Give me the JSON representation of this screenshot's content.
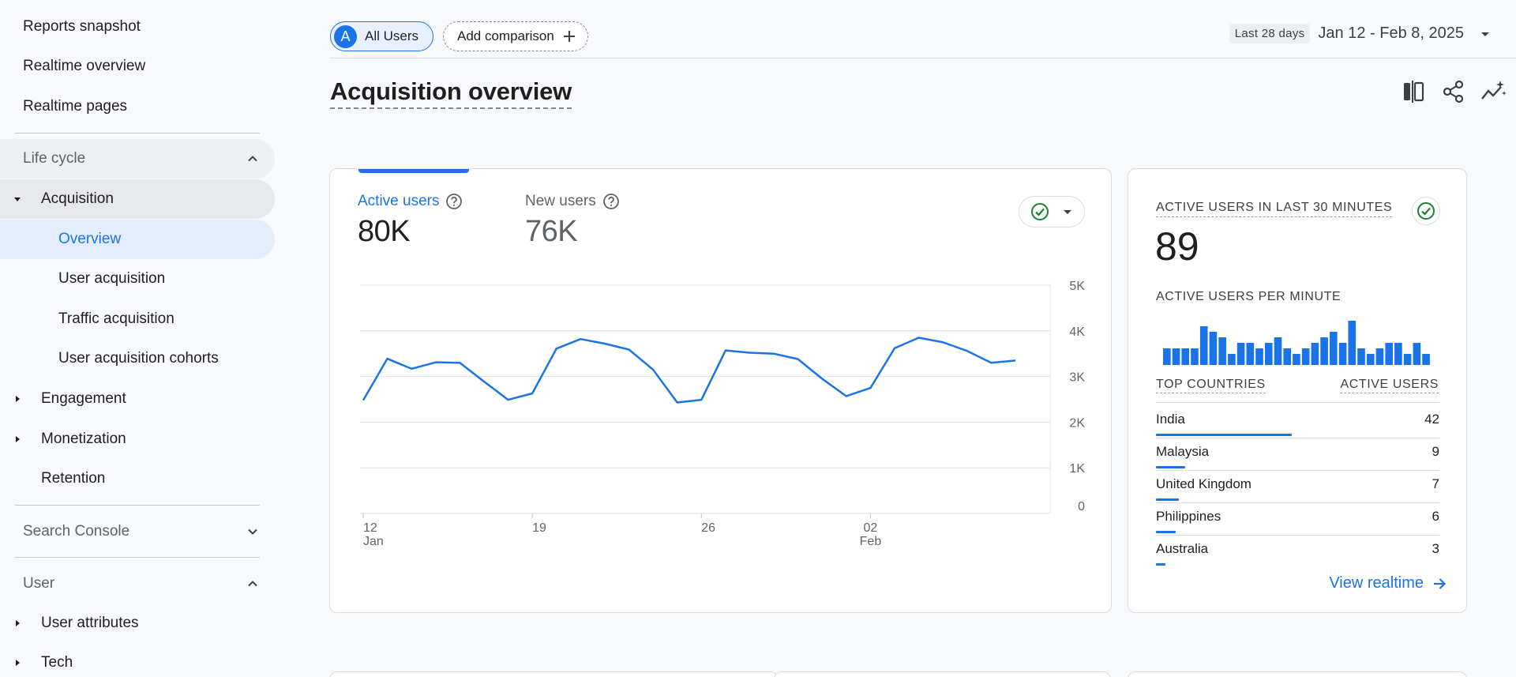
{
  "sidebar": {
    "reports_snapshot": "Reports snapshot",
    "realtime_overview": "Realtime overview",
    "realtime_pages": "Realtime pages",
    "lifecycle": "Life cycle",
    "acquisition": "Acquisition",
    "overview": "Overview",
    "user_acquisition": "User acquisition",
    "traffic_acquisition": "Traffic acquisition",
    "user_acquisition_cohorts": "User acquisition cohorts",
    "engagement": "Engagement",
    "monetization": "Monetization",
    "retention": "Retention",
    "search_console": "Search Console",
    "user": "User",
    "user_attributes": "User attributes",
    "tech": "Tech"
  },
  "toolbar": {
    "segment_avatar": "A",
    "segment_label": "All Users",
    "add_comparison": "Add comparison",
    "date_badge": "Last 28 days",
    "date_range": "Jan 12 - Feb 8, 2025"
  },
  "page": {
    "title": "Acquisition overview"
  },
  "main_card": {
    "active_users_label": "Active users",
    "active_users_value": "80K",
    "new_users_label": "New users",
    "new_users_value": "76K"
  },
  "chart_data": {
    "type": "line",
    "series": [
      {
        "values": [
          2.48,
          3.39,
          3.17,
          3.31,
          3.3,
          2.89,
          2.49,
          2.63,
          3.61,
          3.82,
          3.72,
          3.59,
          3.15,
          2.43,
          2.49,
          3.57,
          3.52,
          3.5,
          3.38,
          2.95,
          2.57,
          2.75,
          3.62,
          3.85,
          3.75,
          3.56,
          3.3,
          3.35
        ]
      }
    ],
    "x_tick_labels": [
      {
        "index": 0,
        "day": "12",
        "month": "Jan"
      },
      {
        "index": 7,
        "day": "19",
        "month": ""
      },
      {
        "index": 14,
        "day": "26",
        "month": ""
      },
      {
        "index": 21,
        "day": "02",
        "month": "Feb"
      }
    ],
    "y_tick_labels": [
      "5K",
      "4K",
      "3K",
      "2K",
      "1K",
      "0"
    ],
    "ylim": [
      0,
      5
    ],
    "grid": true,
    "y_axis_side": "right"
  },
  "realtime": {
    "heading": "ACTIVE USERS IN LAST 30 MINUTES",
    "value": "89",
    "per_minute_label": "ACTIVE USERS PER MINUTE",
    "per_minute": [
      3,
      3,
      3,
      3,
      7,
      6,
      5,
      2,
      4,
      4,
      3,
      4,
      5,
      3,
      2,
      3,
      4,
      5,
      6,
      4,
      8,
      3,
      2,
      3,
      4,
      4,
      2,
      4,
      2
    ],
    "countries_header": "TOP COUNTRIES",
    "users_header": "ACTIVE USERS",
    "countries": [
      {
        "name": "India",
        "value": "42",
        "share": 1.0
      },
      {
        "name": "Malaysia",
        "value": "9",
        "share": 0.214
      },
      {
        "name": "United Kingdom",
        "value": "7",
        "share": 0.167
      },
      {
        "name": "Philippines",
        "value": "6",
        "share": 0.143
      },
      {
        "name": "Australia",
        "value": "3",
        "share": 0.071
      }
    ],
    "view_link": "View realtime"
  },
  "colors": {
    "accent": "#1a73e8",
    "success": "#188038",
    "grid": "#e0e0e0"
  }
}
